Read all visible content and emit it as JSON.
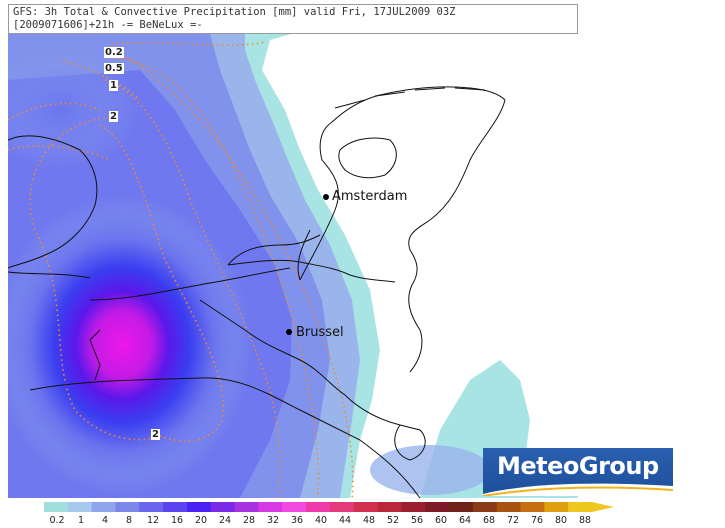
{
  "header": {
    "line1": "GFS: 3h Total & Convective Precipitation [mm] valid Fri, 17JUL2009 03Z",
    "line2": "[2009071606]+21h -= BeNeLux =-"
  },
  "cities": [
    {
      "name": "Amsterdam"
    },
    {
      "name": "Brussel"
    }
  ],
  "contour_labels": [
    "0.2",
    "0.5",
    "1",
    "2",
    "2"
  ],
  "logo": {
    "text": "MeteoGroup"
  },
  "legend": {
    "labels": [
      "0.2",
      "1",
      "4",
      "8",
      "12",
      "16",
      "20",
      "24",
      "28",
      "32",
      "36",
      "40",
      "44",
      "48",
      "52",
      "56",
      "60",
      "64",
      "68",
      "72",
      "76",
      "80",
      "88"
    ],
    "colors": [
      "#9fe0dc",
      "#a7c9ee",
      "#8fa6ea",
      "#7a86ea",
      "#6a66ee",
      "#5a44f0",
      "#4a22f2",
      "#7a2ae6",
      "#a632e2",
      "#d63ae0",
      "#f24ae0",
      "#ee3aa8",
      "#e23a7a",
      "#d23250",
      "#b8283a",
      "#9a2030",
      "#7e1a26",
      "#6e2218",
      "#8a3a14",
      "#a65410",
      "#c47010",
      "#dea010",
      "#eec820"
    ]
  },
  "colors": {
    "sea_light": "#a8e4e4",
    "precip_low": "#93b0ee",
    "precip_mid": "#6a6ef0",
    "precip_high": "#2a1ee0",
    "precip_max": "#e61ee6",
    "contour": "#f08a30"
  }
}
